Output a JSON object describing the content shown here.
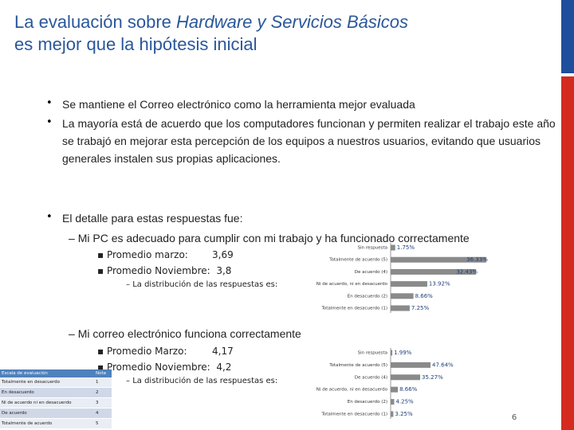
{
  "header": {
    "title_start": "La evaluación sobre ",
    "title_italic": "Hardware y Servicios Básicos",
    "title_line2": "es mejor que la hipótesis inicial"
  },
  "bullets": [
    "Se mantiene el Correo electrónico como la herramienta mejor evaluada",
    "La mayoría está de acuerdo que los computadores funcionan y permiten realizar el trabajo este año se trabajó en mejorar esta percepción de los equipos a nuestros usuarios,  evitando que usuarios generales instalen sus propias aplicaciones.",
    "El detalle para estas respuestas fue:"
  ],
  "sections": [
    {
      "heading": "Mi PC es adecuado para cumplir con mi trabajo y ha funcionado correctamente",
      "avg1_label": "Promedio marzo:",
      "avg1": "3,69",
      "avg2_label": "Promedio Noviembre:",
      "avg2": "3,8",
      "note": "La distribución de las respuestas es:"
    },
    {
      "heading": "Mi correo electrónico funciona correctamente",
      "avg1_label": "Promedio Marzo:",
      "avg1": "4,17",
      "avg2_label": "Promedio  Noviembre:",
      "avg2": "4,2",
      "note": "La distribución de las respuestas es:"
    }
  ],
  "chart_data": [
    {
      "type": "bar",
      "orientation": "horizontal",
      "color": "#8a8a8a",
      "categories": [
        "Sin respuesta",
        "Totalmente de acuerdo (5)",
        "De acuerdo (4)",
        "Ni de acuerdo, ni en desacuerdo",
        "En desacuerdo (2)",
        "Totalmente en desacuerdo (1)"
      ],
      "values": [
        1.75,
        36.33,
        32.43,
        13.92,
        8.66,
        7.25
      ],
      "value_labels": [
        "1.75%",
        "36.33%",
        "32.43%",
        "13.92%",
        "8.66%",
        "7.25%"
      ]
    },
    {
      "type": "bar",
      "orientation": "horizontal",
      "color": "#8a8a8a",
      "categories": [
        "Sin respuesta",
        "Totalmente de acuerdo (5)",
        "De acuerdo (4)",
        "Ni de acuerdo, ni en desacuerdo",
        "En desacuerdo (2)",
        "Totalmente en desacuerdo (1)"
      ],
      "values": [
        1.99,
        47.64,
        35.27,
        8.66,
        4.25,
        3.25
      ],
      "value_labels": [
        "1.99%",
        "47.64%",
        "35.27%",
        "8.66%",
        "4.25%",
        "3.25%"
      ]
    }
  ],
  "table": {
    "header": [
      "Escala de evaluación",
      "Nota"
    ],
    "rows": [
      [
        "Totalmente en desacuerdo",
        "1"
      ],
      [
        "En desacuerdo",
        "2"
      ],
      [
        "Ni de acuerdo ni en desacuerdo",
        "3"
      ],
      [
        "De acuerdo",
        "4"
      ],
      [
        "Totalmente de acuerdo",
        "5"
      ]
    ]
  },
  "page_number": "6"
}
